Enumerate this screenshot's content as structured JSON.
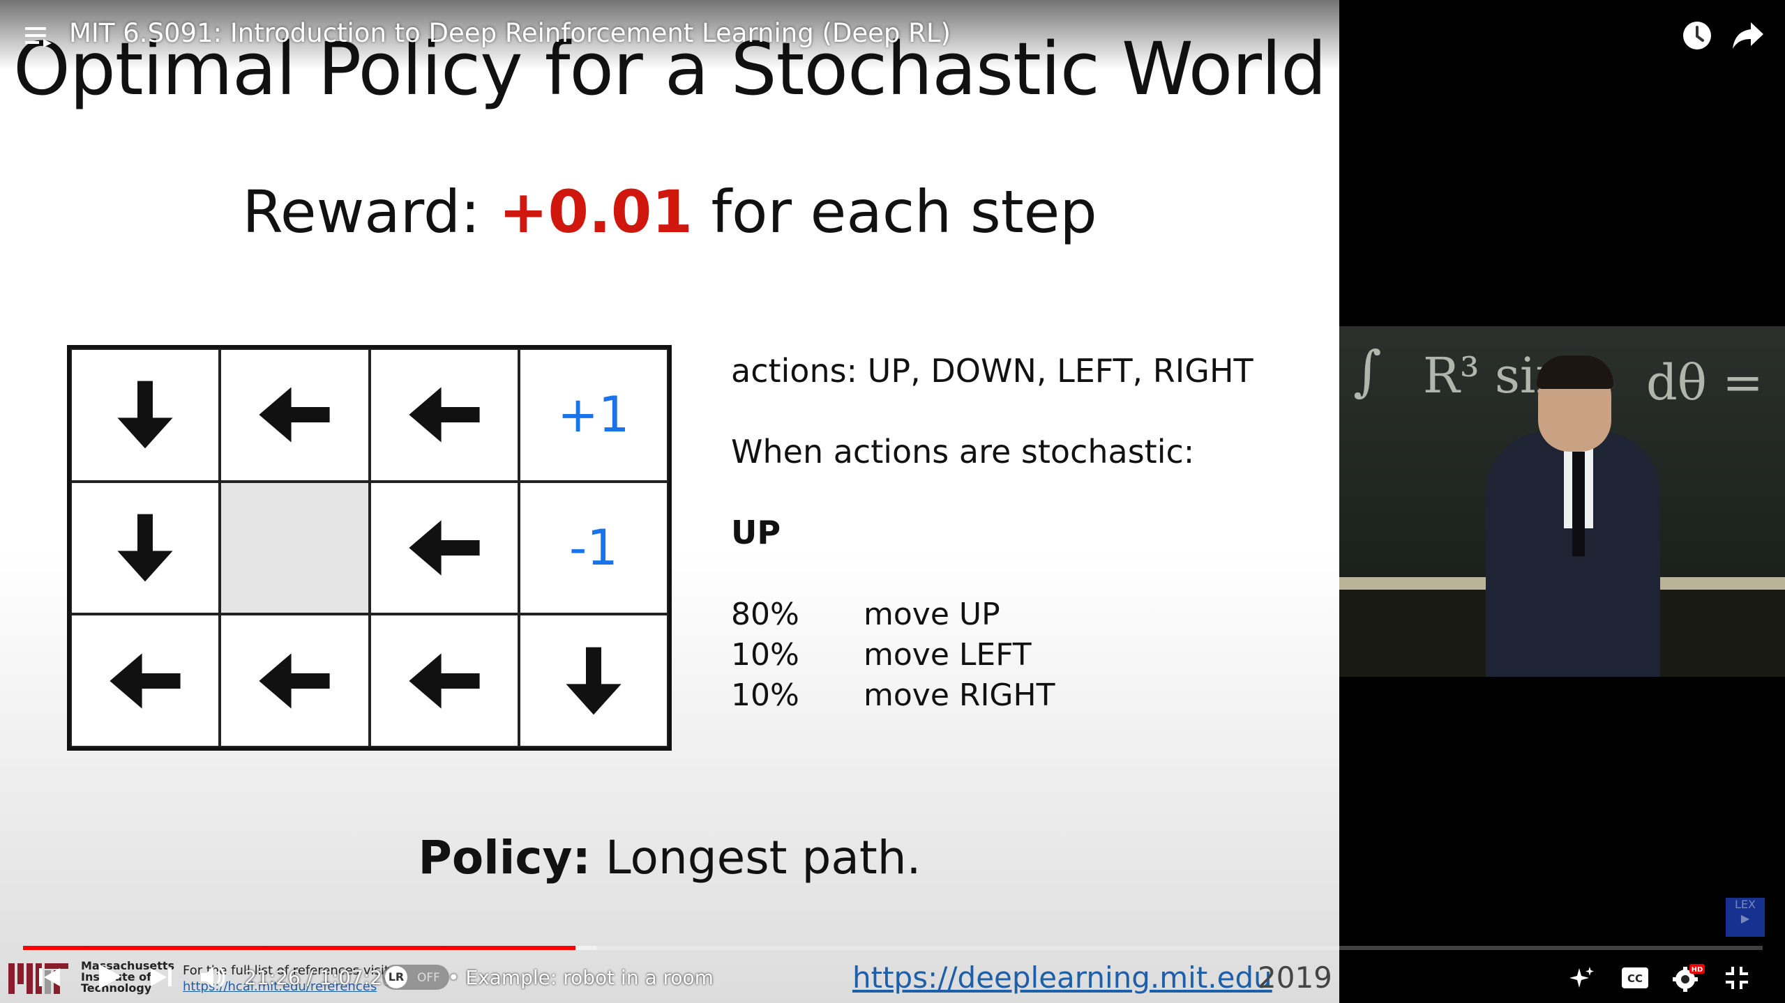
{
  "player": {
    "video_title": "MIT 6.S091: Introduction to Deep Reinforcement Learning (Deep RL)",
    "time_current": "21:26",
    "time_total": "1:07:29",
    "time_display": "21:26 / 1:07:29",
    "chapter": "• Example: robot in a room",
    "lr_toggle_label": "OFF",
    "lr_label": "LR",
    "progress_fraction": 0.3175
  },
  "slide": {
    "title": "Optimal Policy for a Stochastic World",
    "reward_prefix": "Reward: ",
    "reward_value": "+0.01",
    "reward_suffix": " for each step",
    "grid": [
      [
        "down",
        "left",
        "left",
        "+1"
      ],
      [
        "down",
        "wall",
        "left",
        "-1"
      ],
      [
        "left",
        "left",
        "left",
        "down"
      ]
    ],
    "actions_line": "actions: UP, DOWN, LEFT, RIGHT",
    "stochastic_line": "When actions are stochastic:",
    "action_heading": "UP",
    "probabilities": [
      {
        "pct": "80%",
        "label": "move UP"
      },
      {
        "pct": "10%",
        "label": "move LEFT"
      },
      {
        "pct": "10%",
        "label": "move RIGHT"
      }
    ],
    "policy_label": "Policy:",
    "policy_text": " Longest path.",
    "footer_url": "https://deeplearning.mit.edu",
    "footer_year": "2019",
    "institution": "Massachusetts Institute of Technology",
    "institution_lines": [
      "Massachusetts",
      "Institute of",
      "Technology"
    ],
    "refs_text": "For the full list of references visit:",
    "refs_link": "https://hcai.mit.edu/references"
  },
  "colors": {
    "reward_value": "#d0170d",
    "terminal_value": "#1a73e8",
    "progress": "#ff0000",
    "url": "#1d5fa8"
  },
  "icons": [
    "menu-icon",
    "watch-later-icon",
    "share-icon",
    "prev-icon",
    "play-icon",
    "next-icon",
    "volume-icon",
    "ai-sparkle-icon",
    "captions-icon",
    "settings-icon",
    "exit-fullscreen-icon"
  ]
}
